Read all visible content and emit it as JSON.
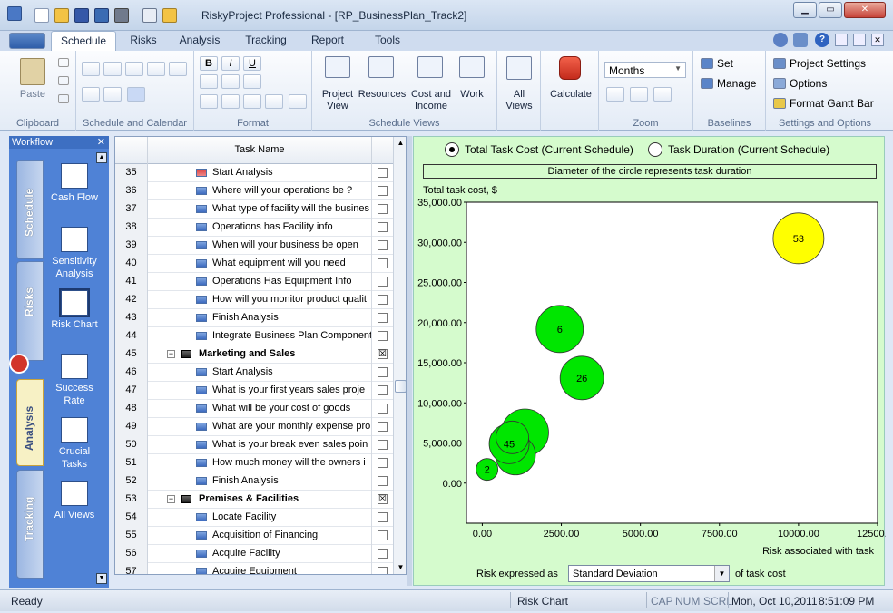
{
  "window": {
    "title": "RiskyProject Professional - [RP_BusinessPlan_Track2]"
  },
  "tabs": [
    "Schedule",
    "Risks",
    "Analysis",
    "Tracking",
    "Report",
    "Tools"
  ],
  "ribbon": {
    "clipboard": {
      "label": "Clipboard",
      "paste": "Paste"
    },
    "schedule_calendar": {
      "label": "Schedule and Calendar"
    },
    "format": {
      "label": "Format"
    },
    "schedule_views": {
      "label": "Schedule Views",
      "project_view": "Project View",
      "resources": "Resources",
      "cost_income": "Cost and Income",
      "work": "Work"
    },
    "all_views": "All Views",
    "calculate": "Calculate",
    "zoom": {
      "label": "Zoom",
      "select_value": "Months"
    },
    "baselines": {
      "label": "Baselines",
      "set": "Set",
      "manage": "Manage"
    },
    "settings": {
      "label": "Settings and Options",
      "project_settings": "Project Settings",
      "options": "Options",
      "format_gantt": "Format Gantt Bar"
    }
  },
  "workflow": {
    "title": "Workflow",
    "tabs": [
      "Schedule",
      "Risks",
      "Analysis",
      "Tracking"
    ],
    "items": [
      "Cash Flow",
      "Sensitivity Analysis",
      "Risk Chart",
      "Success Rate",
      "Crucial Tasks",
      "All Views"
    ]
  },
  "table": {
    "header": "Task Name",
    "rows": [
      {
        "n": "35",
        "name": "Start Analysis",
        "type": "ms",
        "check": ""
      },
      {
        "n": "36",
        "name": "Where will your operations be ?",
        "type": "task",
        "check": ""
      },
      {
        "n": "37",
        "name": "What type of facility will the busines",
        "type": "task",
        "check": ""
      },
      {
        "n": "38",
        "name": "Operations has Facility info",
        "type": "task",
        "check": ""
      },
      {
        "n": "39",
        "name": "When will your business be open",
        "type": "task",
        "check": ""
      },
      {
        "n": "40",
        "name": "What equipment will you need",
        "type": "task",
        "check": ""
      },
      {
        "n": "41",
        "name": "Operations Has Equipment Info",
        "type": "task",
        "check": ""
      },
      {
        "n": "42",
        "name": "How will you monitor product qualit",
        "type": "task",
        "check": ""
      },
      {
        "n": "43",
        "name": "Finish Analysis",
        "type": "task",
        "check": ""
      },
      {
        "n": "44",
        "name": "Integrate Business Plan Component",
        "type": "task",
        "check": ""
      },
      {
        "n": "45",
        "name": "Marketing and Sales",
        "type": "sum",
        "check": "☒"
      },
      {
        "n": "46",
        "name": "Start Analysis",
        "type": "task",
        "check": ""
      },
      {
        "n": "47",
        "name": "What is your first years sales proje",
        "type": "task",
        "check": ""
      },
      {
        "n": "48",
        "name": "What will be your cost of goods",
        "type": "task",
        "check": ""
      },
      {
        "n": "49",
        "name": "What are your monthly expense pro",
        "type": "task",
        "check": ""
      },
      {
        "n": "50",
        "name": "What is your break even sales poin",
        "type": "task",
        "check": ""
      },
      {
        "n": "51",
        "name": "How much money will the owners i",
        "type": "task",
        "check": ""
      },
      {
        "n": "52",
        "name": "Finish Analysis",
        "type": "task",
        "check": ""
      },
      {
        "n": "53",
        "name": "Premises & Facilities",
        "type": "sum",
        "check": "☒"
      },
      {
        "n": "54",
        "name": "Locate Facility",
        "type": "task",
        "check": ""
      },
      {
        "n": "55",
        "name": "Acquisition of Financing",
        "type": "task",
        "check": ""
      },
      {
        "n": "56",
        "name": "Acquire Facility",
        "type": "task",
        "check": ""
      },
      {
        "n": "57",
        "name": "Acquire Equipment",
        "type": "task",
        "check": ""
      }
    ]
  },
  "chart_options": {
    "radio1": "Total Task Cost (Current Schedule)",
    "radio2": "Task Duration (Current Schedule)",
    "note": "Diameter of the circle represents task duration",
    "risk_label": "Risk expressed as",
    "risk_value": "Standard Deviation",
    "risk_suffix": "of task cost"
  },
  "chart_data": {
    "type": "scatter",
    "ylabel": "Total task cost, $",
    "xlabel": "Risk associated with task",
    "xlim": [
      -500,
      12500
    ],
    "ylim": [
      -5000,
      35000
    ],
    "xticks": [
      "0.00",
      "2500.00",
      "5000.00",
      "7500.00",
      "10000.00",
      "12500.00"
    ],
    "yticks": [
      "35,000.00",
      "30,000.00",
      "25,000.00",
      "20,000.00",
      "15,000.00",
      "10,000.00",
      "5,000.00",
      "0.00"
    ],
    "points": [
      {
        "label": "53",
        "x": 10000,
        "y": 30500,
        "size": 28,
        "color": "#ffff00"
      },
      {
        "label": "6",
        "x": 2450,
        "y": 19200,
        "size": 26,
        "color": "#00e600"
      },
      {
        "label": "26",
        "x": 3150,
        "y": 13100,
        "size": 24,
        "color": "#00e600"
      },
      {
        "label": "",
        "x": 1350,
        "y": 6300,
        "size": 26,
        "color": "#00e600"
      },
      {
        "label": "",
        "x": 1050,
        "y": 3500,
        "size": 22,
        "color": "#00e600"
      },
      {
        "label": "45",
        "x": 850,
        "y": 4900,
        "size": 22,
        "color": "#00e600"
      },
      {
        "label": "",
        "x": 950,
        "y": 5700,
        "size": 18,
        "color": "#00e600"
      },
      {
        "label": "2",
        "x": 150,
        "y": 1700,
        "size": 12,
        "color": "#00e600"
      }
    ]
  },
  "status": {
    "ready": "Ready",
    "view": "Risk Chart",
    "cap": "CAP",
    "num": "NUM",
    "scrl": "SCRL",
    "date": "Mon, Oct 10,2011",
    "time": "8:51:09 PM"
  }
}
